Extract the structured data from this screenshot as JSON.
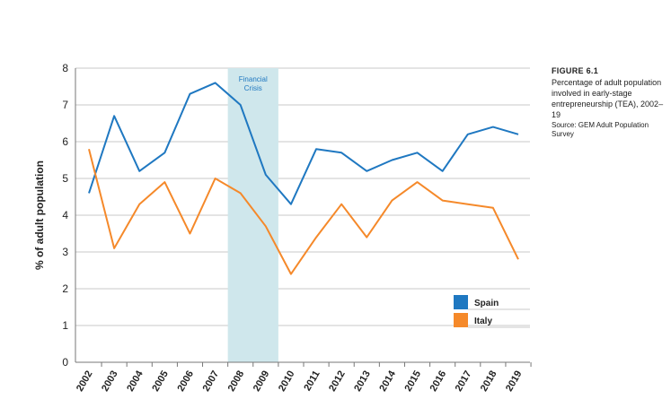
{
  "figure": {
    "label": "FIGURE 6.1",
    "description": "Percentage of adult population involved in early-stage entrepreneurship (TEA), 2002–19",
    "source": "Source: GEM Adult Population Survey"
  },
  "colors": {
    "spain": "#1f78c1",
    "italy": "#f5892a",
    "band": "#cfe7ec",
    "band_text": "#1f78c1",
    "label": "#1f5f9e"
  },
  "chart_data": {
    "type": "line",
    "ylabel": "% of adult population",
    "xlabel": "",
    "ylim": [
      0,
      8
    ],
    "yticks": [
      0,
      1,
      2,
      3,
      4,
      5,
      6,
      7,
      8
    ],
    "grid": "horizontal",
    "legend_position": "bottom-right",
    "x": [
      "2002",
      "2003",
      "2004",
      "2005",
      "2006",
      "2007",
      "2008",
      "2009",
      "2010",
      "2011",
      "2012",
      "2013",
      "2014",
      "2015",
      "2016",
      "2017",
      "2018",
      "2019"
    ],
    "series": [
      {
        "name": "Spain",
        "color": "#1f78c1",
        "values": [
          4.6,
          6.7,
          5.2,
          5.7,
          7.3,
          7.6,
          7.0,
          5.1,
          4.3,
          5.8,
          5.7,
          5.2,
          5.5,
          5.7,
          5.2,
          6.2,
          6.4,
          6.2
        ]
      },
      {
        "name": "Italy",
        "color": "#f5892a",
        "values": [
          5.8,
          3.1,
          4.3,
          4.9,
          3.5,
          5.0,
          4.6,
          3.7,
          2.4,
          3.4,
          4.3,
          3.4,
          4.4,
          4.9,
          4.4,
          4.3,
          4.2,
          2.8
        ]
      }
    ],
    "band": {
      "from": "2008",
      "to": "2009",
      "label": [
        "Financial",
        "Crisis"
      ]
    }
  }
}
